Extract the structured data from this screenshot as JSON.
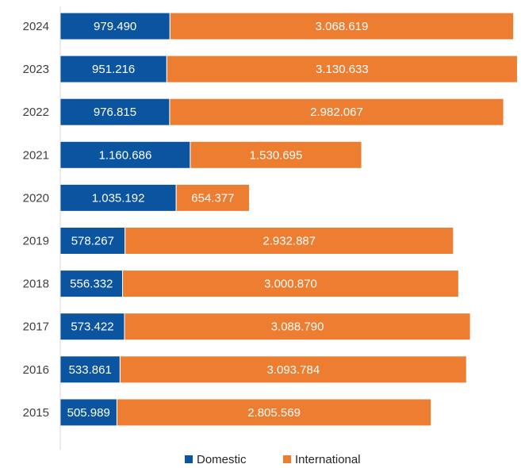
{
  "chart_data": {
    "type": "bar",
    "orientation": "horizontal",
    "stacked": true,
    "categories": [
      "2024",
      "2023",
      "2022",
      "2021",
      "2020",
      "2019",
      "2018",
      "2017",
      "2016",
      "2015"
    ],
    "series": [
      {
        "name": "Domestic",
        "color": "#0b55a0",
        "values": [
          979490,
          951216,
          976815,
          1160686,
          1035192,
          578267,
          556332,
          573422,
          533861,
          505989
        ],
        "labels": [
          "979.490",
          "951.216",
          "976.815",
          "1.160.686",
          "1.035.192",
          "578.267",
          "556.332",
          "573.422",
          "533.861",
          "505.989"
        ]
      },
      {
        "name": "International",
        "color": "#ed7d31",
        "values": [
          3068619,
          3130633,
          2982067,
          1530695,
          654377,
          2932887,
          3000870,
          3088790,
          3093784,
          2805569
        ],
        "labels": [
          "3.068.619",
          "3.130.633",
          "2.982.067",
          "1.530.695",
          "654.377",
          "2.932.887",
          "3.000.870",
          "3.088.790",
          "3.093.784",
          "2.805.569"
        ]
      }
    ],
    "title": "",
    "xlabel": "",
    "ylabel": "",
    "xlim": [
      0,
      4100000
    ],
    "grid": false,
    "legend": "bottom"
  }
}
